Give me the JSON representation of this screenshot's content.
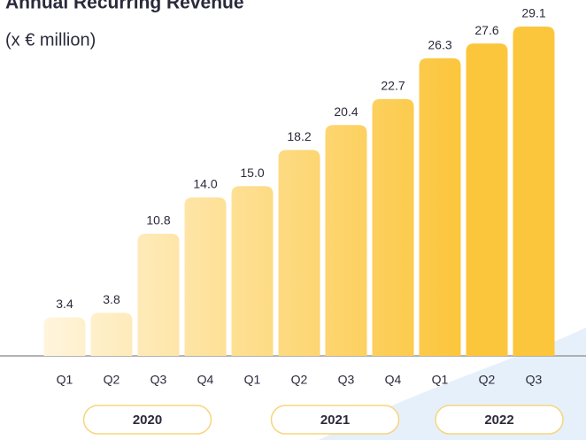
{
  "chart_data": {
    "type": "bar",
    "title": "Annual Recurring Revenue",
    "subtitle": "(x € million)",
    "categories": [
      "Q1",
      "Q2",
      "Q3",
      "Q4",
      "Q1",
      "Q2",
      "Q3",
      "Q4",
      "Q1",
      "Q2",
      "Q3"
    ],
    "values": [
      3.4,
      3.8,
      10.8,
      14.0,
      15.0,
      18.2,
      20.4,
      22.7,
      26.3,
      27.6,
      29.1
    ],
    "value_labels": [
      "3.4",
      "3.8",
      "10.8",
      "14.0",
      "15.0",
      "18.2",
      "20.4",
      "22.7",
      "26.3",
      "27.6",
      "29.1"
    ],
    "groups": [
      {
        "label": "2020",
        "count": 4
      },
      {
        "label": "2021",
        "count": 4
      },
      {
        "label": "2022",
        "count": 3
      }
    ],
    "color": "#fcc63c"
  }
}
